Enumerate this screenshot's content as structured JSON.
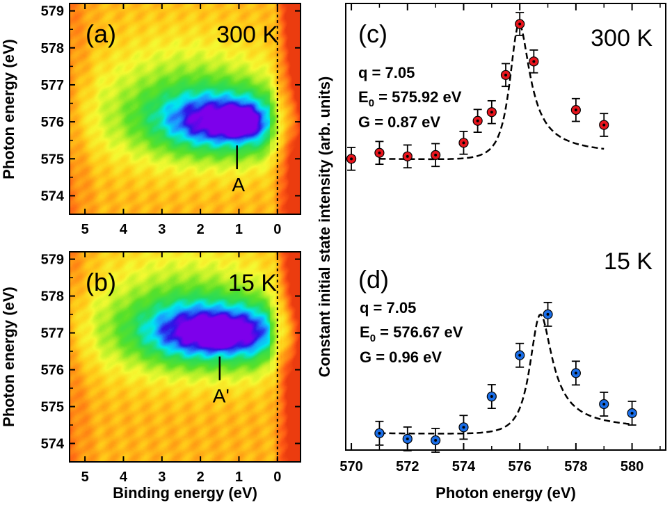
{
  "chart_data": [
    {
      "type": "heatmap",
      "panel_label": "(a)",
      "temperature": "300 K",
      "xlabel": "",
      "ylabel": "Photon energy (eV)",
      "xlim": [
        5.4,
        -0.6
      ],
      "ylim": [
        573.5,
        579.2
      ],
      "xticks": [
        5,
        4,
        3,
        2,
        1,
        0
      ],
      "yticks": [
        574,
        575,
        576,
        577,
        578,
        579
      ],
      "fermi_line_x": 0,
      "peak": {
        "label": "A",
        "binding_energy": 1.05,
        "photon_energy": 576.0
      }
    },
    {
      "type": "heatmap",
      "panel_label": "(b)",
      "temperature": "15 K",
      "xlabel": "Binding energy (eV)",
      "ylabel": "Photon energy (eV)",
      "xlim": [
        5.4,
        -0.6
      ],
      "ylim": [
        573.5,
        579.2
      ],
      "xticks": [
        5,
        4,
        3,
        2,
        1,
        0
      ],
      "yticks": [
        574,
        575,
        576,
        577,
        578,
        579
      ],
      "fermi_line_x": 0,
      "peak": {
        "label": "A'",
        "binding_energy": 1.5,
        "photon_energy": 577.0
      }
    },
    {
      "type": "scatter",
      "panel_label": "(c)",
      "temperature": "300 K",
      "xlabel": "Photon energy (eV)",
      "ylabel": "Constant initial state intensity (arb. units)",
      "xlim": [
        569.8,
        581.2
      ],
      "ylim": [
        0,
        1
      ],
      "xticks": [
        570,
        572,
        574,
        576,
        578,
        580
      ],
      "color": "#e8141c",
      "fit": {
        "q": "q = 7.05",
        "E0_prefix": "E",
        "E0_sub": "0",
        "E0_value": " = 575.92 eV",
        "G": "G = 0.87 eV"
      },
      "points": [
        {
          "x": 570,
          "y": 0.453,
          "err": 0.042
        },
        {
          "x": 571,
          "y": 0.475,
          "err": 0.042
        },
        {
          "x": 572,
          "y": 0.462,
          "err": 0.042
        },
        {
          "x": 573,
          "y": 0.467,
          "err": 0.042
        },
        {
          "x": 574,
          "y": 0.512,
          "err": 0.042
        },
        {
          "x": 574.5,
          "y": 0.593,
          "err": 0.042
        },
        {
          "x": 575,
          "y": 0.625,
          "err": 0.042
        },
        {
          "x": 575.5,
          "y": 0.762,
          "err": 0.042
        },
        {
          "x": 576,
          "y": 0.95,
          "err": 0.042
        },
        {
          "x": 576.5,
          "y": 0.812,
          "err": 0.042
        },
        {
          "x": 578,
          "y": 0.633,
          "err": 0.042
        },
        {
          "x": 579,
          "y": 0.578,
          "err": 0.042
        }
      ]
    },
    {
      "type": "scatter",
      "panel_label": "(d)",
      "temperature": "15 K",
      "xlabel": "Photon energy (eV)",
      "ylabel": "",
      "xlim": [
        569.8,
        581.2
      ],
      "ylim": [
        0,
        1
      ],
      "xticks": [
        570,
        572,
        574,
        576,
        578,
        580
      ],
      "color": "#1a6ee8",
      "fit": {
        "q": "q = 7.05",
        "E0_prefix": "E",
        "E0_sub": "0",
        "E0_value": " = 576.67 eV",
        "G": "G = 0.96 eV"
      },
      "points": [
        {
          "x": 571,
          "y": 0.062,
          "err": 0.042
        },
        {
          "x": 572,
          "y": 0.042,
          "err": 0.042
        },
        {
          "x": 573,
          "y": 0.037,
          "err": 0.042
        },
        {
          "x": 574,
          "y": 0.083,
          "err": 0.042
        },
        {
          "x": 575,
          "y": 0.192,
          "err": 0.042
        },
        {
          "x": 576,
          "y": 0.338,
          "err": 0.042
        },
        {
          "x": 577,
          "y": 0.483,
          "err": 0.042
        },
        {
          "x": 578,
          "y": 0.275,
          "err": 0.042
        },
        {
          "x": 579,
          "y": 0.165,
          "err": 0.042
        },
        {
          "x": 580,
          "y": 0.133,
          "err": 0.042
        }
      ]
    }
  ]
}
